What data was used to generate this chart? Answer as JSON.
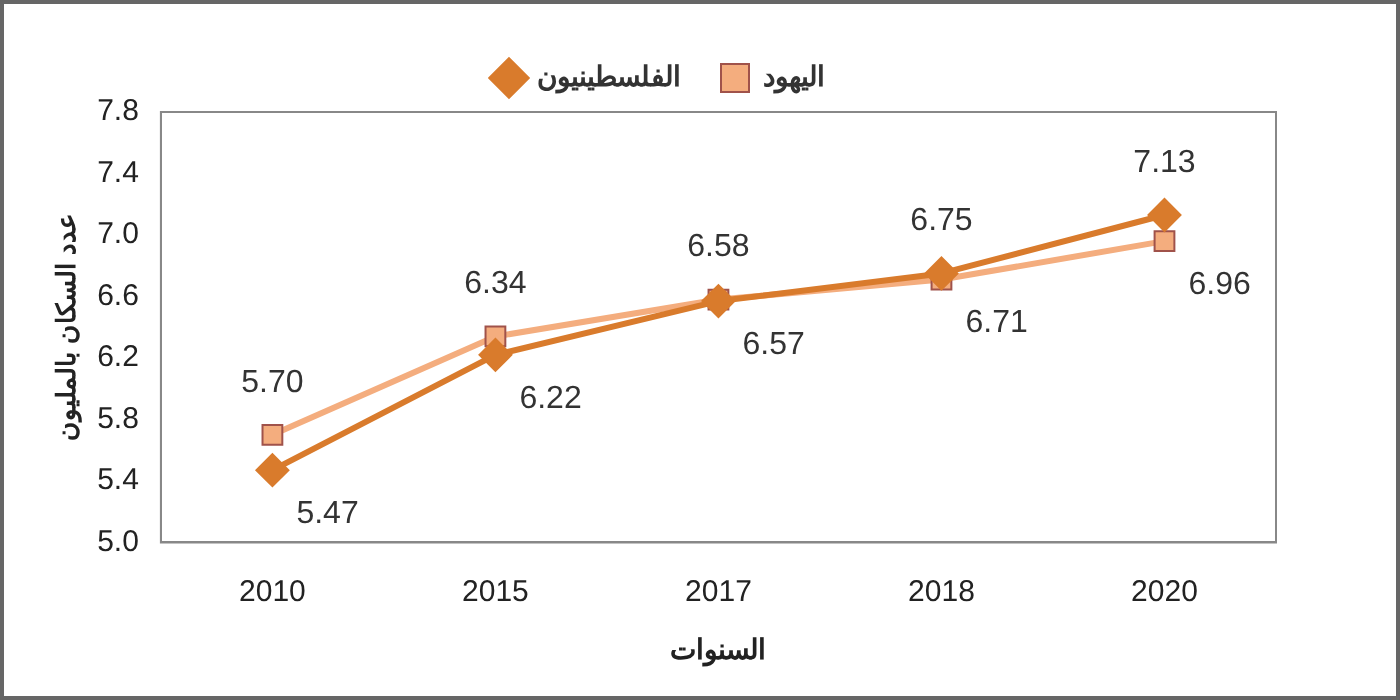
{
  "chart_data": {
    "type": "line",
    "xlabel": "السنوات",
    "ylabel": "عدد السكان بالمليون",
    "categories": [
      "2010",
      "2015",
      "2017",
      "2018",
      "2020"
    ],
    "series": [
      {
        "name": "الفلسطينيون",
        "color": "#d97b2c",
        "marker": "diamond",
        "values": [
          5.47,
          6.22,
          6.57,
          6.75,
          7.13
        ],
        "value_labels": [
          "5.47",
          "6.22",
          "6.57",
          "6.75",
          "7.13"
        ]
      },
      {
        "name": "اليهود",
        "color": "#f4ad7e",
        "marker": "square",
        "values": [
          5.7,
          6.34,
          6.58,
          6.71,
          6.96
        ],
        "value_labels": [
          "5.70",
          "6.34",
          "6.58",
          "6.71",
          "6.96"
        ]
      }
    ],
    "ylim": [
      5.0,
      7.8
    ],
    "yticks": [
      {
        "value": 5.0,
        "label": "5.0"
      },
      {
        "value": 5.4,
        "label": "5.4"
      },
      {
        "value": 5.8,
        "label": "5.8"
      },
      {
        "value": 6.2,
        "label": "6.2"
      },
      {
        "value": 6.6,
        "label": "6.6"
      },
      {
        "value": 7.0,
        "label": "7.0"
      },
      {
        "value": 7.4,
        "label": "7.4"
      },
      {
        "value": 7.8,
        "label": "7.8"
      }
    ],
    "grid": false,
    "legend": "top",
    "line_style": "solid"
  }
}
